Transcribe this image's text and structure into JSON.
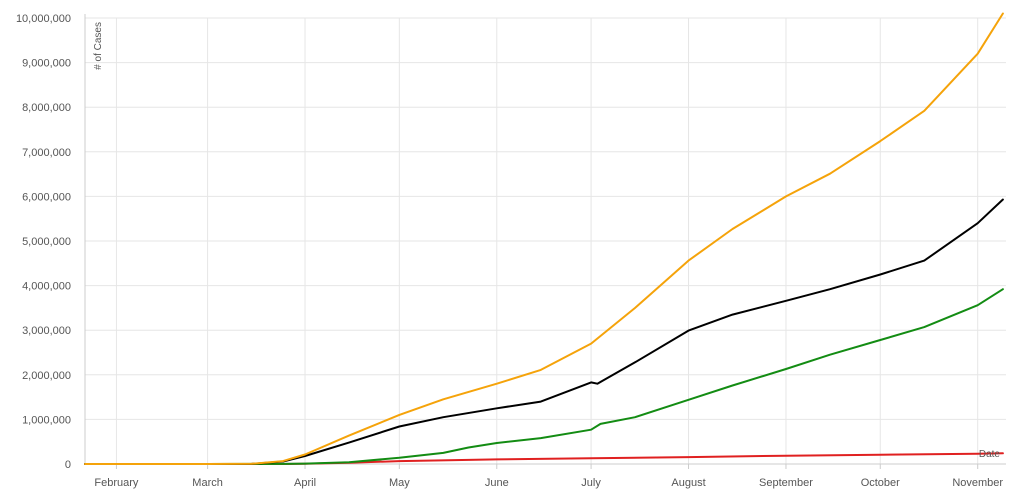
{
  "chart_data": {
    "type": "line",
    "title": "",
    "xlabel": "Date",
    "ylabel": "# of Cases",
    "x_tick_labels": [
      "February",
      "March",
      "April",
      "May",
      "June",
      "July",
      "August",
      "September",
      "October",
      "November"
    ],
    "y_tick_labels": [
      "0",
      "1,000,000",
      "2,000,000",
      "3,000,000",
      "4,000,000",
      "5,000,000",
      "6,000,000",
      "7,000,000",
      "8,000,000",
      "9,000,000",
      "10,000,000"
    ],
    "x_tick_dates": [
      "2020-02-01",
      "2020-03-01",
      "2020-04-01",
      "2020-05-01",
      "2020-06-01",
      "2020-07-01",
      "2020-08-01",
      "2020-09-01",
      "2020-10-01",
      "2020-11-01"
    ],
    "xlim": [
      "2020-01-22",
      "2020-11-10"
    ],
    "ylim": [
      0,
      10000000
    ],
    "grid": true,
    "legend": "none",
    "series": [
      {
        "color": "#f5a30a",
        "x": [
          "2020-01-22",
          "2020-03-01",
          "2020-03-15",
          "2020-03-25",
          "2020-04-01",
          "2020-04-15",
          "2020-05-01",
          "2020-05-15",
          "2020-06-01",
          "2020-06-15",
          "2020-07-01",
          "2020-07-15",
          "2020-08-01",
          "2020-08-15",
          "2020-09-01",
          "2020-09-15",
          "2020-10-01",
          "2020-10-15",
          "2020-11-01",
          "2020-11-09"
        ],
        "values": [
          0,
          70,
          3500,
          65000,
          214000,
          636000,
          1100000,
          1450000,
          1800000,
          2110000,
          2700000,
          3500000,
          4560000,
          5270000,
          6000000,
          6510000,
          7240000,
          7920000,
          9200000,
          10100000
        ]
      },
      {
        "color": "#000000",
        "x": [
          "2020-01-22",
          "2020-03-01",
          "2020-03-15",
          "2020-03-25",
          "2020-04-01",
          "2020-04-15",
          "2020-05-01",
          "2020-05-15",
          "2020-06-01",
          "2020-06-15",
          "2020-07-01",
          "2020-07-03",
          "2020-07-15",
          "2020-08-01",
          "2020-08-15",
          "2020-09-01",
          "2020-09-15",
          "2020-10-01",
          "2020-10-15",
          "2020-11-01",
          "2020-11-09"
        ],
        "values": [
          0,
          70,
          3000,
          55000,
          180000,
          480000,
          840000,
          1050000,
          1250000,
          1400000,
          1830000,
          1800000,
          2280000,
          2990000,
          3350000,
          3660000,
          3920000,
          4250000,
          4560000,
          5400000,
          5930000
        ]
      },
      {
        "color": "#138c13",
        "x": [
          "2020-01-22",
          "2020-03-01",
          "2020-03-25",
          "2020-04-01",
          "2020-04-15",
          "2020-05-01",
          "2020-05-15",
          "2020-05-23",
          "2020-06-01",
          "2020-06-15",
          "2020-07-01",
          "2020-07-04",
          "2020-07-15",
          "2020-08-01",
          "2020-08-15",
          "2020-09-01",
          "2020-09-15",
          "2020-10-01",
          "2020-10-15",
          "2020-11-01",
          "2020-11-09"
        ],
        "values": [
          0,
          0,
          2000,
          10000,
          40000,
          140000,
          250000,
          370000,
          470000,
          580000,
          770000,
          900000,
          1050000,
          1440000,
          1760000,
          2130000,
          2450000,
          2780000,
          3070000,
          3560000,
          3920000
        ]
      },
      {
        "color": "#e02020",
        "x": [
          "2020-01-22",
          "2020-03-01",
          "2020-03-25",
          "2020-04-01",
          "2020-04-15",
          "2020-05-01",
          "2020-06-01",
          "2020-07-01",
          "2020-08-01",
          "2020-09-01",
          "2020-10-01",
          "2020-11-01",
          "2020-11-09"
        ],
        "values": [
          0,
          2,
          1000,
          5000,
          27000,
          65000,
          104000,
          128000,
          155000,
          187000,
          209000,
          232000,
          240000
        ]
      }
    ]
  }
}
